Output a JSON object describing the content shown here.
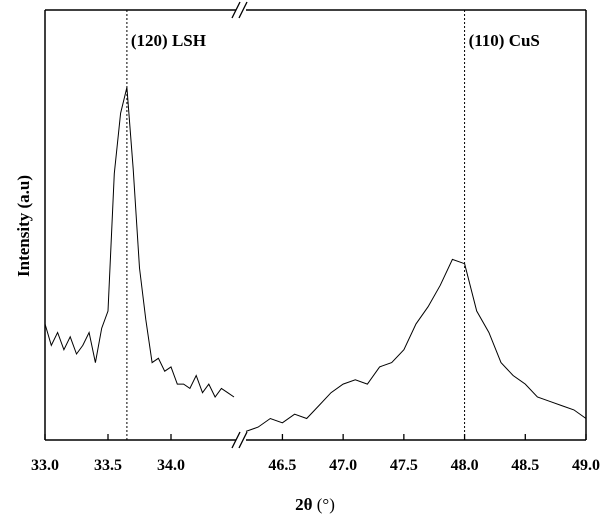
{
  "chart_data": {
    "type": "line",
    "title": "",
    "xlabel": "2θ (°)",
    "xlabel_main": "2θ",
    "xlabel_unit": "(°)",
    "ylabel": "Intensity (a.u)",
    "y_ticks_shown": false,
    "grid": false,
    "axis_break": true,
    "segments": [
      {
        "xlim": [
          33.0,
          34.5
        ],
        "ticks": [
          "33.0",
          "33.5",
          "34.0"
        ],
        "tick_values": [
          33.0,
          33.5,
          34.0
        ]
      },
      {
        "xlim": [
          46.2,
          49.0
        ],
        "ticks": [
          "46.5",
          "47.0",
          "47.5",
          "48.0",
          "48.5",
          "49.0"
        ],
        "tick_values": [
          46.5,
          47.0,
          47.5,
          48.0,
          48.5,
          49.0
        ]
      }
    ],
    "ylim": [
      0,
      100
    ],
    "annotations": [
      {
        "text": "(120) LSH",
        "x": 33.65
      },
      {
        "text": "(110) CuS",
        "x": 48.0
      }
    ],
    "series": [
      {
        "x": [
          33.0,
          33.05,
          33.1,
          33.15,
          33.2,
          33.25,
          33.3,
          33.35,
          33.4,
          33.45,
          33.5,
          33.55,
          33.6,
          33.65,
          33.7,
          33.75,
          33.8,
          33.85,
          33.9,
          33.95,
          34.0,
          34.05,
          34.1,
          34.15,
          34.2,
          34.25,
          34.3,
          34.35,
          34.4,
          34.45,
          34.5
        ],
        "y": [
          27,
          22,
          25,
          21,
          24,
          20,
          22,
          25,
          18,
          26,
          30,
          62,
          76,
          82,
          63,
          40,
          28,
          18,
          19,
          16,
          17,
          13,
          13,
          12,
          15,
          11,
          13,
          10,
          12,
          11,
          10
        ]
      },
      {
        "x": [
          46.2,
          46.3,
          46.4,
          46.5,
          46.6,
          46.7,
          46.8,
          46.9,
          47.0,
          47.1,
          47.2,
          47.3,
          47.4,
          47.5,
          47.6,
          47.7,
          47.8,
          47.9,
          48.0,
          48.1,
          48.2,
          48.3,
          48.4,
          48.5,
          48.6,
          48.7,
          48.8,
          48.9,
          49.0
        ],
        "y": [
          2,
          3,
          5,
          4,
          6,
          5,
          8,
          11,
          13,
          14,
          13,
          17,
          18,
          21,
          27,
          31,
          36,
          42,
          41,
          30,
          25,
          18,
          15,
          13,
          10,
          9,
          8,
          7,
          5
        ]
      }
    ]
  }
}
